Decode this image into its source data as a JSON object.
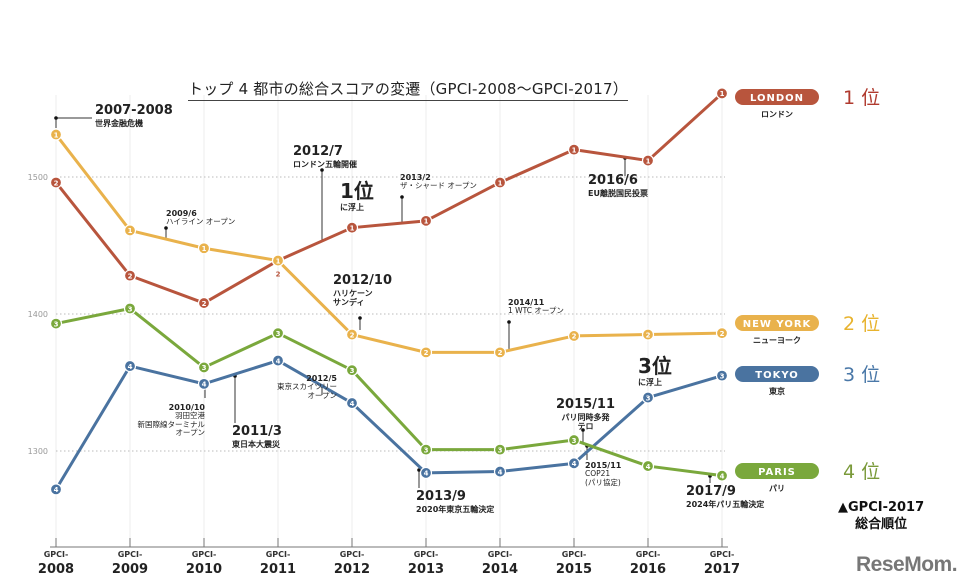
{
  "chart_data": {
    "type": "line",
    "title": "トップ 4 都市の総合スコアの変遷（GPCI-2008〜GPCI-2017）",
    "categories": [
      "2008",
      "2009",
      "2010",
      "2011",
      "2012",
      "2013",
      "2014",
      "2015",
      "2016",
      "2017"
    ],
    "tick_prefix": "GPCI-",
    "yticks": [
      1300,
      1400,
      1500
    ],
    "ylim": [
      1230,
      1570
    ],
    "grid": true,
    "series": [
      {
        "name": "LONDON",
        "name_ja": "ロンドン",
        "color": "#b8553d",
        "final_rank": "1 位",
        "rank_color": "#b03a2e",
        "values": [
          1496,
          1428,
          1408,
          1439,
          1463,
          1468,
          1496,
          1520,
          1512,
          1561
        ],
        "ranks": [
          2,
          2,
          2,
          2,
          1,
          1,
          1,
          1,
          1,
          1
        ]
      },
      {
        "name": "NEW YORK",
        "name_ja": "ニューヨーク",
        "color": "#e9b24c",
        "final_rank": "2 位",
        "rank_color": "#e8b32e",
        "values": [
          1531,
          1461,
          1448,
          1439,
          1385,
          1372,
          1372,
          1384,
          1385,
          1386
        ],
        "ranks": [
          1,
          1,
          1,
          1,
          2,
          2,
          2,
          2,
          2,
          2
        ]
      },
      {
        "name": "TOKYO",
        "name_ja": "東京",
        "color": "#4a73a0",
        "final_rank": "3 位",
        "rank_color": "#4a78a8",
        "values": [
          1272,
          1362,
          1349,
          1366,
          1335,
          1284,
          1285,
          1291,
          1339,
          1355
        ],
        "ranks": [
          4,
          4,
          4,
          4,
          4,
          4,
          4,
          4,
          3,
          3
        ]
      },
      {
        "name": "PARIS",
        "name_ja": "パリ",
        "color": "#7aa83c",
        "final_rank": "4 位",
        "rank_color": "#7a9a3a",
        "values": [
          1393,
          1404,
          1361,
          1386,
          1359,
          1301,
          1301,
          1308,
          1289,
          1282
        ],
        "ranks": [
          3,
          3,
          3,
          3,
          3,
          3,
          3,
          3,
          4,
          4
        ]
      }
    ],
    "annotations": [
      {
        "head": "2007-2008",
        "text": "世界金融危機"
      },
      {
        "head": "2009/6",
        "text": "ハイライン オープン"
      },
      {
        "head": "2012/7",
        "text": "ロンドン五輪開催"
      },
      {
        "head": "1位",
        "text": "に浮上"
      },
      {
        "head": "2013/2",
        "text": "ザ・シャード オープン"
      },
      {
        "head": "2016/6",
        "text": "EU離脱国民投票"
      },
      {
        "head": "2012/10",
        "text": "ハリケーン\nサンディ"
      },
      {
        "head": "2014/11",
        "text": "1 WTC オープン"
      },
      {
        "head": "2010/10",
        "text": "羽田空港\n新国際線ターミナル\nオープン"
      },
      {
        "head": "2011/3",
        "text": "東日本大震災"
      },
      {
        "head": "2012/5",
        "text": "東京スカイツリー\nオープン"
      },
      {
        "head": "2013/9",
        "text": "2020年東京五輪決定"
      },
      {
        "head": "3位",
        "text": "に浮上"
      },
      {
        "head": "2015/11",
        "text": "パリ同時多発\nテロ"
      },
      {
        "head": "2015/11",
        "text": "COP21\n(パリ協定)"
      },
      {
        "head": "2017/9",
        "text": "2024年パリ五輪決定"
      }
    ],
    "note": "▲GPCI-2017\n総合順位"
  },
  "logo": "ReseMom."
}
